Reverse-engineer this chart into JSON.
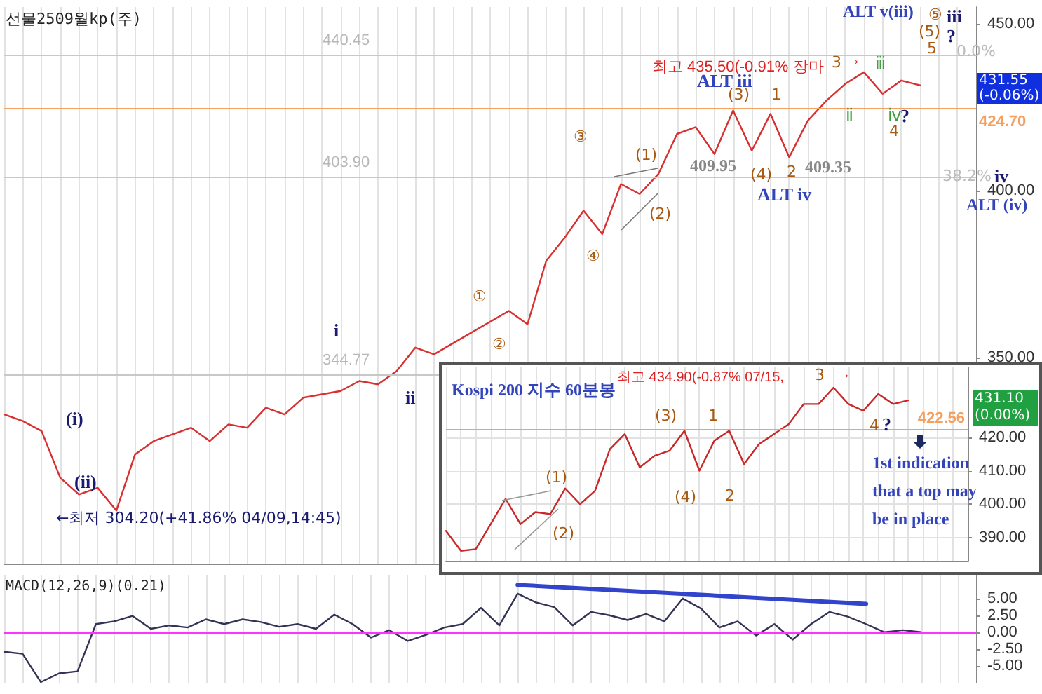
{
  "chart_data": [
    {
      "type": "line",
      "title": "선물2509월kp(주)",
      "categories": [
        null,
        null,
        null,
        null,
        null,
        null,
        null,
        null,
        null,
        null,
        null,
        null,
        null,
        null,
        null,
        null,
        null,
        null,
        null,
        null,
        null,
        null,
        null,
        null,
        null,
        null,
        null,
        null,
        null,
        null,
        null,
        null,
        null,
        null,
        null,
        null,
        null,
        null,
        null,
        null,
        null,
        null,
        null,
        null,
        null,
        null,
        null,
        null,
        null,
        null
      ],
      "series": [
        {
          "color": "#d83030",
          "values": [
            333,
            331,
            328,
            314,
            309,
            311,
            304.2,
            321,
            325,
            327,
            329,
            325,
            330,
            329,
            335,
            333,
            338,
            339,
            340,
            343,
            342,
            346,
            353,
            351,
            null,
            null,
            null,
            364,
            360,
            379,
            386,
            394,
            387,
            402,
            399,
            405,
            417,
            419,
            411,
            424,
            412,
            423,
            410,
            421,
            427,
            432,
            435.5,
            429,
            433,
            431.55
          ]
        }
      ],
      "ylim": [
        288.3,
        455
      ],
      "yticks": [
        {
          "value": 350,
          "label": "350.00"
        },
        {
          "value": 400,
          "label": "400.00"
        },
        {
          "value": 450,
          "label": "450.00"
        }
      ],
      "grid": "x",
      "line_style": "solid",
      "marker": "none",
      "ref_lines": [
        {
          "axis": "y",
          "value": 440.45,
          "label": "440.45",
          "color": "#c8c8c8"
        },
        {
          "axis": "y",
          "value": 403.9,
          "label": "403.90",
          "color": "#c8c8c8"
        },
        {
          "axis": "y",
          "value": 344.77,
          "label": "344.77",
          "color": "#c8c8c8"
        },
        {
          "axis": "y",
          "value": 424.7,
          "label": "424.70",
          "color": "#f4a060"
        }
      ],
      "annotations": [
        "최고 435.50(-0.91% 장마",
        "ALT v(iii)",
        "iii",
        "⑤",
        "(5)",
        "?",
        "5",
        "0.0%",
        "ALT iii",
        "(3)",
        "1",
        "3",
        "→",
        "ⅲ",
        "ⅱ",
        "ⅳ",
        "?",
        "4",
        "409.95",
        "(4)",
        "2",
        "409.35",
        "ALT iv",
        "iv",
        "ALT (iv)",
        "38.2%",
        "(1)",
        "(2)",
        "③",
        "④",
        "①",
        "②",
        "i",
        "(i)",
        "(ii)",
        "ii",
        "←최저 304.20(+41.86% 04/09,14:45)",
        "431.55 (-0.06%)"
      ]
    },
    {
      "type": "line",
      "title": "Kospi 200 지수 60분봉",
      "categories": [
        null,
        null,
        null,
        null,
        null,
        null,
        null,
        null,
        null,
        null,
        null,
        null,
        null,
        null,
        null,
        null,
        null,
        null,
        null,
        null,
        null,
        null,
        null,
        null,
        null,
        null,
        null,
        null,
        null,
        null,
        null,
        null
      ],
      "series": [
        {
          "color": "#c82828",
          "values": [
            392,
            386,
            386.5,
            394,
            401.6,
            394,
            397.6,
            397,
            404.7,
            400,
            404,
            416.5,
            421,
            411,
            414.5,
            416,
            422,
            410,
            419,
            422,
            412,
            418,
            421,
            424,
            430,
            430,
            434.9,
            430,
            428,
            433,
            430,
            431.1
          ]
        }
      ],
      "ylim": [
        383,
        441
      ],
      "yticks": [
        {
          "value": 390,
          "label": "390.00"
        },
        {
          "value": 400,
          "label": "400.00"
        },
        {
          "value": 410,
          "label": "410.00"
        },
        {
          "value": 420,
          "label": "420.00"
        }
      ],
      "grid": true,
      "line_style": "solid",
      "marker": "none",
      "ref_lines": [
        {
          "axis": "y",
          "value": 422.56,
          "label": "422.56",
          "color": "#f4a060"
        }
      ],
      "annotations": [
        "최고 434.90(-0.87% 07/15,",
        "3",
        "→",
        "(3)",
        "1",
        "(1)",
        "(2)",
        "(4)",
        "2",
        "4",
        "?",
        "1st indication that a top may be in place",
        "431.10 (0.00%)"
      ]
    },
    {
      "type": "line",
      "title": "MACD(12,26,9)(0.21)",
      "categories": [
        null,
        null,
        null,
        null,
        null,
        null,
        null,
        null,
        null,
        null,
        null,
        null,
        null,
        null,
        null,
        null,
        null,
        null,
        null,
        null,
        null,
        null,
        null,
        null,
        null,
        null,
        null,
        null,
        null,
        null,
        null,
        null,
        null,
        null,
        null,
        null,
        null,
        null,
        null,
        null,
        null,
        null,
        null,
        null,
        null,
        null,
        null,
        null,
        null,
        null,
        null
      ],
      "series": [
        {
          "color": "#333355",
          "values": [
            -2.9,
            -3.2,
            -7.4,
            -6.1,
            -5.8,
            1.2,
            1.6,
            2.4,
            0.5,
            1.0,
            0.7,
            1.9,
            1.2,
            1.9,
            1.5,
            0.8,
            1.2,
            0.5,
            2.6,
            1.2,
            -0.8,
            0.3,
            -1.3,
            -0.4,
            0.7,
            1.2,
            3.6,
            1.0,
            5.7,
            4.4,
            3.7,
            1.0,
            3.0,
            2.5,
            1.8,
            2.7,
            1.6,
            5.0,
            3.5,
            0.7,
            1.6,
            -0.5,
            1.2,
            -1.1,
            1.2,
            3.0,
            2.3,
            1.2,
            0,
            0.3,
            0
          ]
        },
        {
          "type": "line",
          "color": "#3344cc",
          "values": [
            null,
            null,
            null,
            null,
            null,
            null,
            null,
            null,
            null,
            null,
            null,
            null,
            null,
            null,
            null,
            null,
            null,
            null,
            null,
            null,
            null,
            null,
            null,
            null,
            null,
            null,
            null,
            null,
            7.0,
            null,
            null,
            null,
            null,
            null,
            null,
            null,
            null,
            null,
            null,
            null,
            null,
            null,
            null,
            null,
            null,
            null,
            null,
            4.2,
            null,
            null,
            null
          ]
        }
      ],
      "ylim": [
        -7.5,
        8.5
      ],
      "yticks": [
        {
          "value": -5,
          "label": "-5.00"
        },
        {
          "value": -2.5,
          "label": "-2.50"
        },
        {
          "value": 0,
          "label": "0.00"
        },
        {
          "value": 2.5,
          "label": "2.50"
        },
        {
          "value": 5,
          "label": "5.00"
        }
      ],
      "grid": "x",
      "line_style": "solid",
      "marker": "none",
      "ref_lines": [
        {
          "axis": "y",
          "value": 0,
          "color": "#ff33ff"
        }
      ]
    }
  ]
}
